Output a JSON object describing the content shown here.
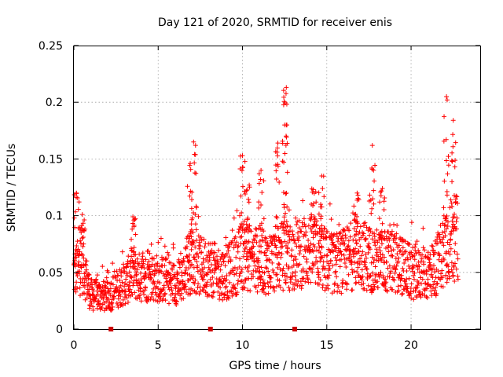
{
  "chart_data": {
    "type": "scatter",
    "title": "Day 121 of 2020, SRMTID for receiver enis",
    "xlabel": "GPS time / hours",
    "ylabel": "SRMTID / TECUs",
    "xlim": [
      0,
      24.1
    ],
    "ylim": [
      0,
      0.25
    ],
    "x_ticks": [
      "0",
      "5",
      "10",
      "15",
      "20"
    ],
    "x_tick_values": [
      0,
      5,
      10,
      15,
      20
    ],
    "y_ticks": [
      "0",
      "0.05",
      "0.1",
      "0.15",
      "0.2",
      "0.25"
    ],
    "y_tick_values": [
      0,
      0.05,
      0.1,
      0.15,
      0.2,
      0.25
    ],
    "grid": true,
    "marker": "+",
    "series_color": "#ff0000",
    "gap_marker_color": "#cc0000",
    "gap_markers_x": [
      2.2,
      8.1,
      13.1
    ],
    "baseline": [
      [
        0.0,
        0.05
      ],
      [
        0.5,
        0.058
      ],
      [
        1.0,
        0.03
      ],
      [
        1.5,
        0.03
      ],
      [
        2.0,
        0.028
      ],
      [
        2.5,
        0.035
      ],
      [
        3.0,
        0.04
      ],
      [
        3.5,
        0.048
      ],
      [
        4.0,
        0.045
      ],
      [
        4.5,
        0.045
      ],
      [
        5.0,
        0.045
      ],
      [
        5.5,
        0.043
      ],
      [
        6.0,
        0.04
      ],
      [
        6.5,
        0.045
      ],
      [
        7.0,
        0.062
      ],
      [
        7.5,
        0.055
      ],
      [
        8.0,
        0.055
      ],
      [
        8.5,
        0.05
      ],
      [
        9.0,
        0.048
      ],
      [
        9.5,
        0.055
      ],
      [
        10.0,
        0.065
      ],
      [
        10.5,
        0.062
      ],
      [
        11.0,
        0.06
      ],
      [
        11.5,
        0.058
      ],
      [
        12.0,
        0.062
      ],
      [
        12.5,
        0.065
      ],
      [
        13.0,
        0.062
      ],
      [
        13.5,
        0.068
      ],
      [
        14.0,
        0.07
      ],
      [
        14.5,
        0.065
      ],
      [
        15.0,
        0.06
      ],
      [
        15.5,
        0.058
      ],
      [
        16.0,
        0.06
      ],
      [
        16.5,
        0.065
      ],
      [
        17.0,
        0.068
      ],
      [
        17.5,
        0.062
      ],
      [
        18.0,
        0.06
      ],
      [
        18.5,
        0.06
      ],
      [
        19.0,
        0.058
      ],
      [
        19.5,
        0.055
      ],
      [
        20.0,
        0.05
      ],
      [
        20.5,
        0.048
      ],
      [
        21.0,
        0.05
      ],
      [
        21.5,
        0.055
      ],
      [
        22.0,
        0.075
      ],
      [
        22.5,
        0.08
      ],
      [
        22.8,
        0.08
      ]
    ],
    "peaks": [
      {
        "x": 0.15,
        "y": 0.12
      },
      {
        "x": 0.5,
        "y": 0.101
      },
      {
        "x": 3.5,
        "y": 0.099
      },
      {
        "x": 6.9,
        "y": 0.146
      },
      {
        "x": 7.1,
        "y": 0.165
      },
      {
        "x": 10.0,
        "y": 0.153
      },
      {
        "x": 10.4,
        "y": 0.127
      },
      {
        "x": 11.1,
        "y": 0.14
      },
      {
        "x": 12.1,
        "y": 0.164
      },
      {
        "x": 12.5,
        "y": 0.18
      },
      {
        "x": 12.6,
        "y": 0.213
      },
      {
        "x": 14.2,
        "y": 0.123
      },
      {
        "x": 14.7,
        "y": 0.135
      },
      {
        "x": 16.8,
        "y": 0.12
      },
      {
        "x": 17.7,
        "y": 0.162
      },
      {
        "x": 18.3,
        "y": 0.124
      },
      {
        "x": 22.1,
        "y": 0.205
      },
      {
        "x": 22.5,
        "y": 0.184
      }
    ]
  }
}
